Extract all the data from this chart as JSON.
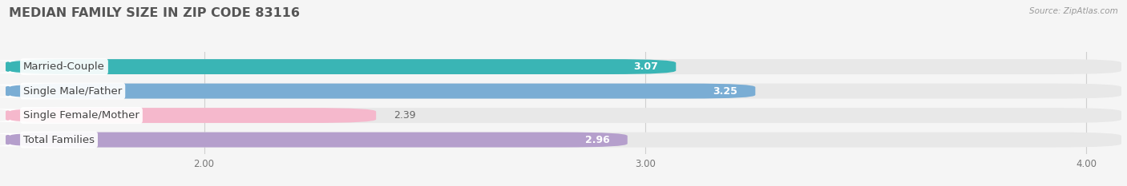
{
  "title": "MEDIAN FAMILY SIZE IN ZIP CODE 83116",
  "source": "Source: ZipAtlas.com",
  "categories": [
    "Married-Couple",
    "Single Male/Father",
    "Single Female/Mother",
    "Total Families"
  ],
  "values": [
    3.07,
    3.25,
    2.39,
    2.96
  ],
  "bar_colors": [
    "#3ab5b5",
    "#7aadd4",
    "#f5b8cc",
    "#b59fcc"
  ],
  "bar_bg_color": "#e8e8e8",
  "xlim_min": 1.55,
  "xlim_max": 4.08,
  "xticks": [
    2.0,
    3.0,
    4.0
  ],
  "xtick_labels": [
    "2.00",
    "3.00",
    "4.00"
  ],
  "background_color": "#f5f5f5",
  "title_fontsize": 11.5,
  "label_fontsize": 9.5,
  "value_fontsize": 9,
  "bar_height": 0.62,
  "value_label_color_inside": "#ffffff",
  "value_label_color_outside": "#666666",
  "value_inside_threshold": 0.5,
  "grid_color": "#d0d0d0",
  "label_bg_color": "#ffffff"
}
